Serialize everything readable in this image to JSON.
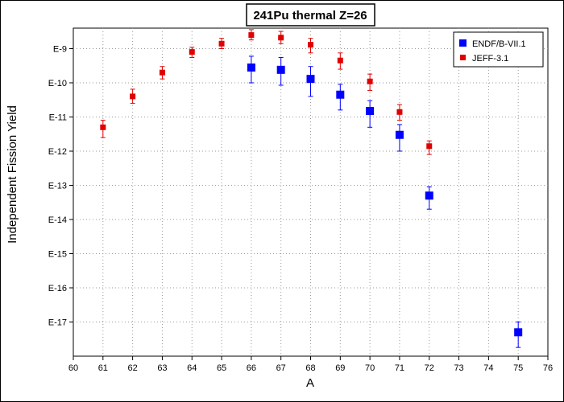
{
  "chart_data": {
    "type": "scatter",
    "title": "241Pu thermal Z=26",
    "xlabel": "A",
    "ylabel": "Independent Fission Yield",
    "xlim": [
      60,
      76
    ],
    "ylim_log10": [
      -18,
      -8.4
    ],
    "y_scale": "log",
    "grid": true,
    "legend_position": "top-right",
    "x_ticks": [
      {
        "value": 60,
        "label": "60"
      },
      {
        "value": 61,
        "label": "61"
      },
      {
        "value": 62,
        "label": "62"
      },
      {
        "value": 63,
        "label": "63"
      },
      {
        "value": 64,
        "label": "64"
      },
      {
        "value": 65,
        "label": "65"
      },
      {
        "value": 66,
        "label": "66"
      },
      {
        "value": 67,
        "label": "67"
      },
      {
        "value": 68,
        "label": "68"
      },
      {
        "value": 69,
        "label": "69"
      },
      {
        "value": 70,
        "label": "70"
      },
      {
        "value": 71,
        "label": "71"
      },
      {
        "value": 72,
        "label": "72"
      },
      {
        "value": 73,
        "label": "73"
      },
      {
        "value": 74,
        "label": "74"
      },
      {
        "value": 75,
        "label": "75"
      },
      {
        "value": 76,
        "label": "76"
      }
    ],
    "y_ticks": [
      {
        "value": 1e-09,
        "label": "E-9"
      },
      {
        "value": 1e-10,
        "label": "E-10"
      },
      {
        "value": 1e-11,
        "label": "E-11"
      },
      {
        "value": 1e-12,
        "label": "E-12"
      },
      {
        "value": 1e-13,
        "label": "E-13"
      },
      {
        "value": 1e-14,
        "label": "E-14"
      },
      {
        "value": 1e-15,
        "label": "E-15"
      },
      {
        "value": 1e-16,
        "label": "E-16"
      },
      {
        "value": 1e-17,
        "label": "E-17"
      }
    ],
    "series": [
      {
        "name": "ENDF/B-VII.1",
        "color": "#0000ff",
        "marker": "square-large",
        "points": [
          {
            "x": 66,
            "y": 2.8e-10,
            "y_low": 1e-10,
            "y_high": 6e-10
          },
          {
            "x": 67,
            "y": 2.4e-10,
            "y_low": 8.5e-11,
            "y_high": 5.5e-10
          },
          {
            "x": 68,
            "y": 1.3e-10,
            "y_low": 4e-11,
            "y_high": 3e-10
          },
          {
            "x": 69,
            "y": 4.5e-11,
            "y_low": 1.6e-11,
            "y_high": 9e-11
          },
          {
            "x": 70,
            "y": 1.5e-11,
            "y_low": 5e-12,
            "y_high": 3e-11
          },
          {
            "x": 71,
            "y": 3e-12,
            "y_low": 1e-12,
            "y_high": 6e-12
          },
          {
            "x": 72,
            "y": 5e-14,
            "y_low": 2e-14,
            "y_high": 9e-14
          },
          {
            "x": 75,
            "y": 5e-18,
            "y_low": 1.8e-18,
            "y_high": 1e-17
          }
        ]
      },
      {
        "name": "JEFF-3.1",
        "color": "#e00000",
        "marker": "square-small",
        "points": [
          {
            "x": 61,
            "y": 5e-12,
            "y_low": 2.5e-12,
            "y_high": 8e-12
          },
          {
            "x": 62,
            "y": 4e-11,
            "y_low": 2.5e-11,
            "y_high": 6.5e-11
          },
          {
            "x": 63,
            "y": 2e-10,
            "y_low": 1.3e-10,
            "y_high": 3e-10
          },
          {
            "x": 64,
            "y": 8e-10,
            "y_low": 5.5e-10,
            "y_high": 1.1e-09
          },
          {
            "x": 65,
            "y": 1.4e-09,
            "y_low": 1e-09,
            "y_high": 2e-09
          },
          {
            "x": 66,
            "y": 2.5e-09,
            "y_low": 1.8e-09,
            "y_high": 3.6e-09
          },
          {
            "x": 67,
            "y": 2.1e-09,
            "y_low": 1.4e-09,
            "y_high": 3.2e-09
          },
          {
            "x": 68,
            "y": 1.3e-09,
            "y_low": 7.5e-10,
            "y_high": 2e-09
          },
          {
            "x": 69,
            "y": 4.5e-10,
            "y_low": 2.5e-10,
            "y_high": 7.5e-10
          },
          {
            "x": 70,
            "y": 1.1e-10,
            "y_low": 6e-11,
            "y_high": 1.8e-10
          },
          {
            "x": 71,
            "y": 1.4e-11,
            "y_low": 8e-12,
            "y_high": 2.3e-11
          },
          {
            "x": 72,
            "y": 1.4e-12,
            "y_low": 8e-13,
            "y_high": 2e-12
          }
        ]
      }
    ]
  }
}
